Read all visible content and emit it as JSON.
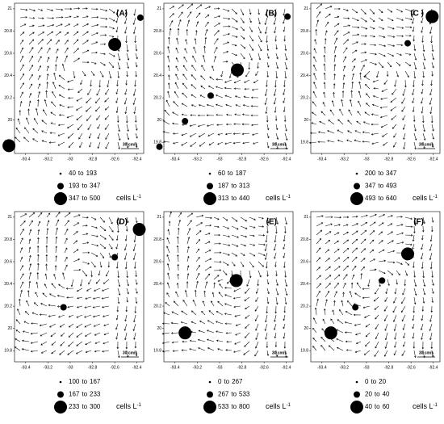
{
  "chart_data": [
    {
      "type": "bubble",
      "title": "(A)",
      "x": [
        -92.6,
        -92.37,
        -93.55
      ],
      "y": [
        20.68,
        20.92,
        19.77
      ],
      "sizes": [
        423,
        270,
        423
      ],
      "size_bins": [
        40,
        193,
        347,
        500
      ],
      "size_bin_word": "to",
      "size_unit": "cells L",
      "size_unit_exponent": "-1",
      "scale_label": "30 cm/s",
      "color": "#000000",
      "xlim": [
        -93.5,
        -92.34
      ],
      "ylim": [
        19.7,
        21.05
      ],
      "xticks": [
        -93.4,
        -93.2,
        -93,
        -92.8,
        -92.6,
        -92.4
      ],
      "yticks": [
        19.8,
        20,
        20.2,
        20.4,
        20.6,
        20.8,
        21
      ]
    },
    {
      "type": "bubble",
      "title": "(B)",
      "x": [
        -92.84,
        -93.08,
        -93.31,
        -93.54,
        -92.39
      ],
      "y": [
        20.45,
        20.22,
        19.99,
        19.76,
        20.93
      ],
      "sizes": [
        376,
        250,
        250,
        250,
        250
      ],
      "size_bins": [
        60,
        187,
        313,
        440
      ],
      "size_bin_word": "to",
      "size_unit": "cells L",
      "size_unit_exponent": "-1",
      "scale_label": "30 cm/s",
      "color": "#000000",
      "xlim": [
        -93.5,
        -92.34
      ],
      "ylim": [
        19.7,
        21.05
      ],
      "xticks": [
        -93.4,
        -93.2,
        -93,
        -92.8,
        -92.6,
        -92.4
      ],
      "yticks": [
        19.8,
        20,
        20.2,
        20.4,
        20.6,
        20.8,
        21
      ]
    },
    {
      "type": "bubble",
      "title": "(C )",
      "x": [
        -92.41,
        -92.63
      ],
      "y": [
        20.93,
        20.69
      ],
      "sizes": [
        566,
        420
      ],
      "size_bins": [
        200,
        347,
        493,
        640
      ],
      "size_bin_word": "to",
      "size_unit": "cells L",
      "size_unit_exponent": "-1",
      "scale_label": "30 cm/s",
      "color": "#000000",
      "xlim": [
        -93.5,
        -92.34
      ],
      "ylim": [
        19.7,
        21.05
      ],
      "xticks": [
        -93.4,
        -93.2,
        -93,
        -92.8,
        -92.6,
        -92.4
      ],
      "yticks": [
        19.8,
        20,
        20.2,
        20.4,
        20.6,
        20.8,
        21
      ]
    },
    {
      "type": "bubble",
      "title": "(D)",
      "x": [
        -92.38,
        -92.6,
        -93.06
      ],
      "y": [
        20.89,
        20.64,
        20.19
      ],
      "sizes": [
        266,
        200,
        200
      ],
      "size_bins": [
        100,
        167,
        233,
        300
      ],
      "size_bin_word": "to",
      "size_unit": "cells L",
      "size_unit_exponent": "-1",
      "scale_label": "30 cm/s",
      "color": "#000000",
      "xlim": [
        -93.5,
        -92.34
      ],
      "ylim": [
        19.7,
        21.05
      ],
      "xticks": [
        -93.4,
        -93.2,
        -93,
        -92.8,
        -92.6,
        -92.4
      ],
      "yticks": [
        19.8,
        20,
        20.2,
        20.4,
        20.6,
        20.8,
        21
      ]
    },
    {
      "type": "bubble",
      "title": "(E)",
      "x": [
        -92.85,
        -93.31
      ],
      "y": [
        20.43,
        19.96
      ],
      "sizes": [
        666,
        666
      ],
      "size_bins": [
        0,
        267,
        533,
        800
      ],
      "size_bin_word": "to",
      "size_unit": "cells L",
      "size_unit_exponent": "-1",
      "scale_label": "30 cm/s",
      "color": "#000000",
      "xlim": [
        -93.5,
        -92.34
      ],
      "ylim": [
        19.7,
        21.05
      ],
      "xticks": [
        -93.4,
        -93.2,
        -93,
        -92.8,
        -92.6,
        -92.4
      ],
      "yticks": [
        19.8,
        20,
        20.2,
        20.4,
        20.6,
        20.8,
        21
      ]
    },
    {
      "type": "bubble",
      "title": "(F)",
      "x": [
        -92.63,
        -92.86,
        -93.1,
        -93.32
      ],
      "y": [
        20.67,
        20.43,
        20.19,
        19.96
      ],
      "sizes": [
        50,
        30,
        30,
        50
      ],
      "size_bins": [
        0,
        20,
        40,
        60
      ],
      "size_bin_word": "to",
      "size_unit": "cells L",
      "size_unit_exponent": "-1",
      "scale_label": "30 cm/s",
      "color": "#000000",
      "xlim": [
        -93.5,
        -92.34
      ],
      "ylim": [
        19.7,
        21.05
      ],
      "xticks": [
        -93.4,
        -93.2,
        -93,
        -92.8,
        -92.6,
        -92.4
      ],
      "yticks": [
        19.8,
        20,
        20.2,
        20.4,
        20.6,
        20.8,
        21
      ]
    }
  ]
}
